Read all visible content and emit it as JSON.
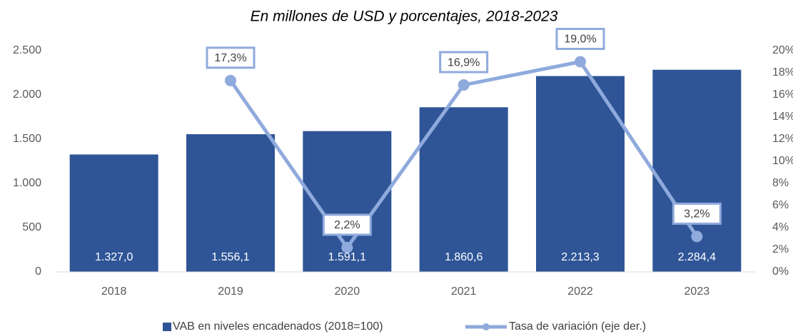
{
  "chart_data": {
    "type": "bar",
    "title": "En millones de USD y porcentajes, 2018-2023",
    "categories": [
      "2018",
      "2019",
      "2020",
      "2021",
      "2022",
      "2023"
    ],
    "series": [
      {
        "name": "VAB en niveles encadenados (2018=100)",
        "type": "bar",
        "color": "#2f5597",
        "values": [
          1327.0,
          1556.1,
          1591.1,
          1860.6,
          2213.3,
          2284.4
        ],
        "value_labels": [
          "1.327,0",
          "1.556,1",
          "1.591,1",
          "1.860,6",
          "2.213,3",
          "2.284,4"
        ]
      },
      {
        "name": "Tasa de variación (eje der.)",
        "type": "line",
        "axis": "y2",
        "color": "#8faadc",
        "values": [
          null,
          17.3,
          2.2,
          16.9,
          19.0,
          3.2
        ],
        "value_labels": [
          null,
          "17,3%",
          "2,2%",
          "16,9%",
          "19,0%",
          "3,2%"
        ]
      }
    ],
    "ylim": [
      0,
      2500
    ],
    "yticks": [
      0,
      500,
      {
        "value": 1000,
        "label": "1.000"
      },
      {
        "value": 1500,
        "label": "1.500"
      },
      {
        "value": 2000,
        "label": "2.000"
      },
      {
        "value": 2500,
        "label": "2.500"
      }
    ],
    "y2lim": [
      0,
      20
    ],
    "y2ticks": [
      {
        "value": 0,
        "label": "0%"
      },
      {
        "value": 2,
        "label": "2%"
      },
      {
        "value": 4,
        "label": "4%"
      },
      {
        "value": 6,
        "label": "6%"
      },
      {
        "value": 8,
        "label": "8%"
      },
      {
        "value": 10,
        "label": "10%"
      },
      {
        "value": 12,
        "label": "12%"
      },
      {
        "value": 14,
        "label": "14%"
      },
      {
        "value": 16,
        "label": "16%"
      },
      {
        "value": 18,
        "label": "18%"
      },
      {
        "value": 20,
        "label": "20%"
      }
    ],
    "legend": "bottom"
  }
}
